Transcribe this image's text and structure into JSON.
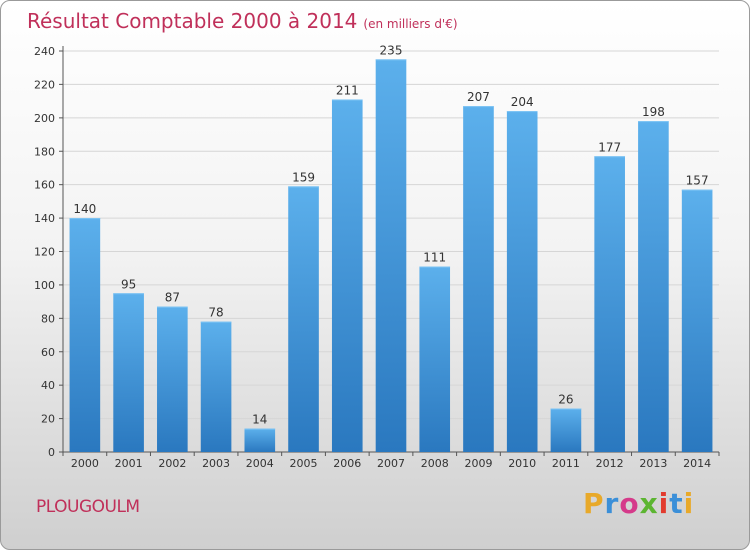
{
  "chart_data": {
    "type": "bar",
    "title": "Résultat Comptable 2000 à 2014",
    "subtitle": "(en milliers d'€)",
    "categories": [
      "2000",
      "2001",
      "2002",
      "2003",
      "2004",
      "2005",
      "2006",
      "2007",
      "2008",
      "2009",
      "2010",
      "2011",
      "2012",
      "2013",
      "2014"
    ],
    "values": [
      140,
      95,
      87,
      78,
      14,
      159,
      211,
      235,
      111,
      207,
      204,
      26,
      177,
      198,
      157
    ],
    "ylim": [
      0,
      240
    ],
    "yticks": [
      0,
      20,
      40,
      60,
      80,
      100,
      120,
      140,
      160,
      180,
      200,
      220,
      240
    ],
    "xlabel": "",
    "ylabel": "",
    "grid": true,
    "bar_color": "#3a8fd6"
  },
  "footer": {
    "commune": "PLOUGOULM",
    "logo_letters": [
      "P",
      "r",
      "o",
      "x",
      "i",
      "t",
      "i"
    ],
    "logo_colors": [
      "#e8a92a",
      "#3b8fd8",
      "#d53a8a",
      "#5cb531",
      "#e23b2e",
      "#3b8fd8",
      "#e8a92a"
    ]
  }
}
